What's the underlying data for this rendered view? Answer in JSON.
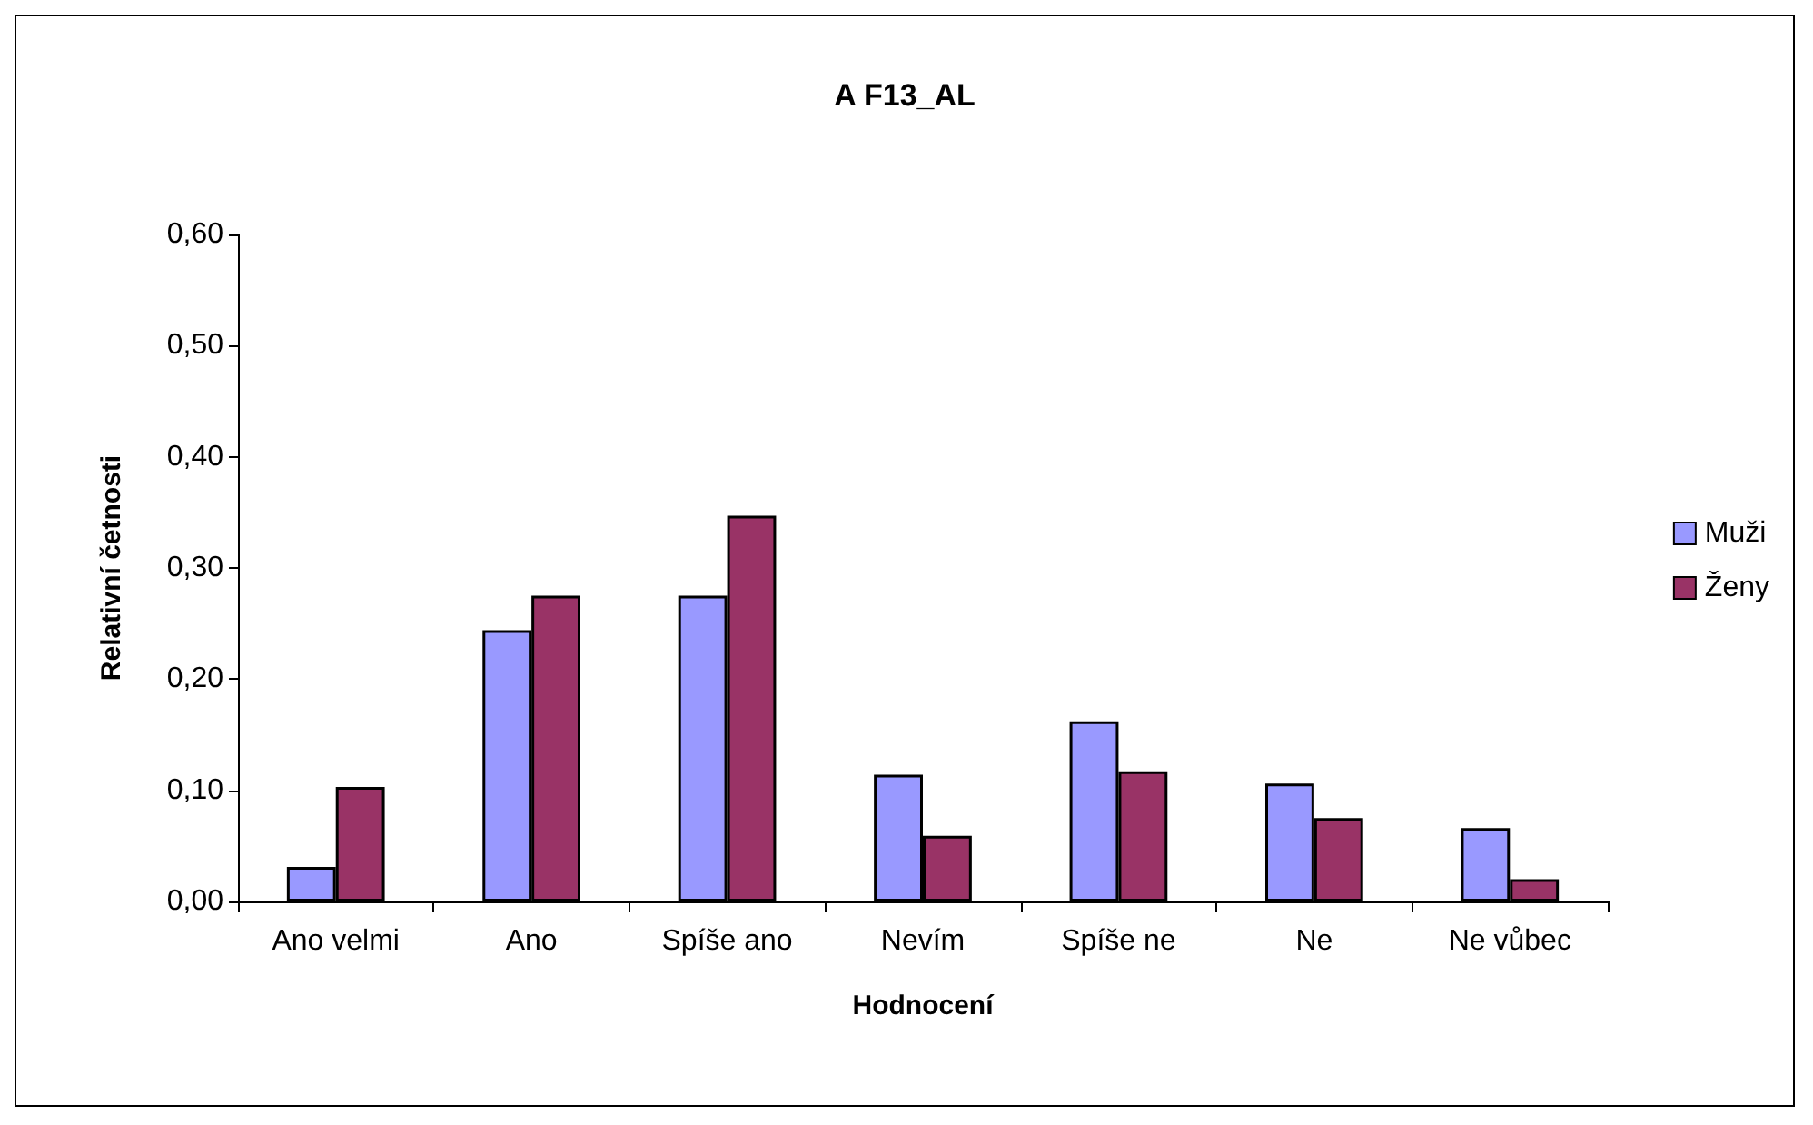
{
  "chart_data": {
    "type": "bar",
    "title": "A F13_AL",
    "xlabel": "Hodnocení",
    "ylabel": "Relativní četnosti",
    "categories": [
      "Ano velmi",
      "Ano",
      "Spíše ano",
      "Nevím",
      "Spíše ne",
      "Ne",
      "Ne vůbec"
    ],
    "series": [
      {
        "name": "Muži",
        "color": "#9999ff",
        "values": [
          0.031,
          0.244,
          0.275,
          0.114,
          0.162,
          0.106,
          0.066
        ]
      },
      {
        "name": "Ženy",
        "color": "#993366",
        "values": [
          0.103,
          0.275,
          0.347,
          0.059,
          0.117,
          0.075,
          0.02
        ]
      }
    ],
    "ylim": [
      0,
      0.6
    ],
    "yticks": [
      {
        "value": 0,
        "label": "0,00"
      },
      {
        "value": 0.1,
        "label": "0,10"
      },
      {
        "value": 0.2,
        "label": "0,20"
      },
      {
        "value": 0.3,
        "label": "0,30"
      },
      {
        "value": 0.4,
        "label": "0,40"
      },
      {
        "value": 0.5,
        "label": "0,50"
      },
      {
        "value": 0.6,
        "label": "0,60"
      }
    ],
    "grid": false,
    "legend": "right"
  }
}
